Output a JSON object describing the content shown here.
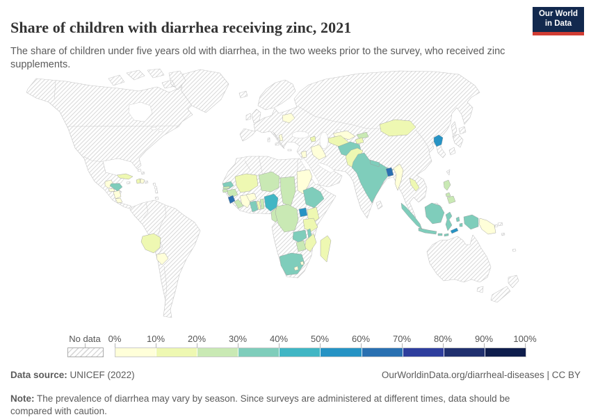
{
  "header": {
    "title": "Share of children with diarrhea receiving zinc, 2021",
    "subtitle": "The share of children under five years old with diarrhea, in the two weeks prior to the survey, who received zinc supplements.",
    "logo": {
      "line1": "Our World",
      "line2": "in Data",
      "bg_color": "#12294e",
      "accent_color": "#d13d33"
    }
  },
  "footer": {
    "source_label": "Data source:",
    "source_value": "UNICEF (2022)",
    "link": "OurWorldinData.org/diarrheal-diseases | CC BY",
    "note_label": "Note:",
    "note_text": "The prevalence of diarrhea may vary by season. Since surveys are administered at different times, data should be compared with caution."
  },
  "chart_data": {
    "type": "heatmap",
    "variant": "choropleth_world_map",
    "title": "Share of children with diarrhea receiving zinc, 2021",
    "year": 2021,
    "unit": "%",
    "legend": {
      "position": "bottom",
      "no_data_label": "No data",
      "no_data_style": "diagonal-hatch",
      "ticks": [
        "0%",
        "10%",
        "20%",
        "30%",
        "40%",
        "50%",
        "60%",
        "70%",
        "80%",
        "90%",
        "100%"
      ],
      "bin_labels": [
        "0-10%",
        "10-20%",
        "20-30%",
        "30-40%",
        "40-50%",
        "50-60%",
        "60-70%",
        "70-80%",
        "80-90%",
        "90-100%"
      ],
      "colors": [
        "#ffffd9",
        "#eef8b2",
        "#c9e9b4",
        "#7fcdbb",
        "#41b6c4",
        "#2693c4",
        "#2a70b1",
        "#2e3e9d",
        "#20306e",
        "#0e1d4c"
      ]
    },
    "countries": [
      {
        "id": "guatemala",
        "name": "Guatemala",
        "range": "0-10%",
        "bin": 0
      },
      {
        "id": "el-salvador",
        "name": "El Salvador",
        "range": "0-10%",
        "bin": 0
      },
      {
        "id": "honduras",
        "name": "Honduras",
        "range": "30-40%",
        "bin": 3
      },
      {
        "id": "nicaragua",
        "name": "Nicaragua",
        "range": "0-10%",
        "bin": 0
      },
      {
        "id": "costa-rica",
        "name": "Costa Rica",
        "range": "0-10%",
        "bin": 0
      },
      {
        "id": "cuba",
        "name": "Cuba",
        "range": "10-20%",
        "bin": 1
      },
      {
        "id": "haiti",
        "name": "Haiti",
        "range": "10-20%",
        "bin": 1
      },
      {
        "id": "dominican-republic",
        "name": "Dominican Republic",
        "range": "0-10%",
        "bin": 0
      },
      {
        "id": "bolivia",
        "name": "Bolivia",
        "range": "10-20%",
        "bin": 1
      },
      {
        "id": "paraguay",
        "name": "Paraguay",
        "range": "0-10%",
        "bin": 0
      },
      {
        "id": "belarus",
        "name": "Belarus",
        "range": "0-10%",
        "bin": 0
      },
      {
        "id": "albania",
        "name": "Albania",
        "range": "0-10%",
        "bin": 0
      },
      {
        "id": "armenia",
        "name": "Armenia",
        "range": "10-20%",
        "bin": 1
      },
      {
        "id": "jordan",
        "name": "Jordan",
        "range": "0-10%",
        "bin": 0
      },
      {
        "id": "iraq",
        "name": "Iraq",
        "range": "0-10%",
        "bin": 0
      },
      {
        "id": "turkmenistan",
        "name": "Turkmenistan",
        "range": "10-20%",
        "bin": 1
      },
      {
        "id": "uzbekistan",
        "name": "Uzbekistan",
        "range": "0-10%",
        "bin": 0
      },
      {
        "id": "kyrgyzstan",
        "name": "Kyrgyzstan",
        "range": "20-30%",
        "bin": 2
      },
      {
        "id": "tajikistan",
        "name": "Tajikistan",
        "range": "10-20%",
        "bin": 1
      },
      {
        "id": "afghanistan",
        "name": "Afghanistan",
        "range": "30-40%",
        "bin": 3
      },
      {
        "id": "pakistan",
        "name": "Pakistan",
        "range": "10-20%",
        "bin": 1
      },
      {
        "id": "india",
        "name": "India",
        "range": "30-40%",
        "bin": 3
      },
      {
        "id": "nepal",
        "name": "Nepal",
        "range": "30-40%",
        "bin": 3
      },
      {
        "id": "bangladesh",
        "name": "Bangladesh",
        "range": "60-70%",
        "bin": 6
      },
      {
        "id": "myanmar",
        "name": "Myanmar",
        "range": "0-10%",
        "bin": 0
      },
      {
        "id": "laos",
        "name": "Laos",
        "range": "10-20%",
        "bin": 1
      },
      {
        "id": "mongolia",
        "name": "Mongolia",
        "range": "10-20%",
        "bin": 1
      },
      {
        "id": "north-korea",
        "name": "North Korea",
        "range": "50-60%",
        "bin": 5
      },
      {
        "id": "philippines",
        "name": "Philippines",
        "range": "20-30%",
        "bin": 2
      },
      {
        "id": "indonesia",
        "name": "Indonesia",
        "range": "30-40%",
        "bin": 3
      },
      {
        "id": "timor-leste",
        "name": "Timor-Leste",
        "range": "50-60%",
        "bin": 5
      },
      {
        "id": "papua-new-guinea",
        "name": "Papua New Guinea",
        "range": "0-10%",
        "bin": 0
      },
      {
        "id": "senegal",
        "name": "Senegal",
        "range": "30-40%",
        "bin": 3
      },
      {
        "id": "gambia",
        "name": "Gambia",
        "range": "20-30%",
        "bin": 2
      },
      {
        "id": "guinea-bissau",
        "name": "Guinea-Bissau",
        "range": "20-30%",
        "bin": 2
      },
      {
        "id": "guinea",
        "name": "Guinea",
        "range": "20-30%",
        "bin": 2
      },
      {
        "id": "sierra-leone",
        "name": "Sierra Leone",
        "range": "60-70%",
        "bin": 6
      },
      {
        "id": "liberia",
        "name": "Liberia",
        "range": "20-30%",
        "bin": 2
      },
      {
        "id": "cote-divoire",
        "name": "Cote d'Ivoire",
        "range": "0-10%",
        "bin": 0
      },
      {
        "id": "mali",
        "name": "Mali",
        "range": "10-20%",
        "bin": 1
      },
      {
        "id": "burkina-faso",
        "name": "Burkina Faso",
        "range": "0-10%",
        "bin": 0
      },
      {
        "id": "ghana",
        "name": "Ghana",
        "range": "30-40%",
        "bin": 3
      },
      {
        "id": "togo",
        "name": "Togo",
        "range": "10-20%",
        "bin": 1
      },
      {
        "id": "benin",
        "name": "Benin",
        "range": "20-30%",
        "bin": 2
      },
      {
        "id": "nigeria",
        "name": "Nigeria",
        "range": "40-50%",
        "bin": 4
      },
      {
        "id": "niger",
        "name": "Niger",
        "range": "20-30%",
        "bin": 2
      },
      {
        "id": "chad",
        "name": "Chad",
        "range": "20-30%",
        "bin": 2
      },
      {
        "id": "cameroon",
        "name": "Cameroon",
        "range": "20-30%",
        "bin": 2
      },
      {
        "id": "sudan",
        "name": "Sudan",
        "range": "0-10%",
        "bin": 0
      },
      {
        "id": "ethiopia",
        "name": "Ethiopia",
        "range": "30-40%",
        "bin": 3
      },
      {
        "id": "uganda",
        "name": "Uganda",
        "range": "50-60%",
        "bin": 5
      },
      {
        "id": "kenya",
        "name": "Kenya",
        "range": "10-20%",
        "bin": 1
      },
      {
        "id": "tanzania",
        "name": "Tanzania",
        "range": "10-20%",
        "bin": 1
      },
      {
        "id": "dr-congo",
        "name": "Democratic Republic of Congo",
        "range": "20-30%",
        "bin": 2
      },
      {
        "id": "zambia",
        "name": "Zambia",
        "range": "30-40%",
        "bin": 3
      },
      {
        "id": "malawi",
        "name": "Malawi",
        "range": "30-40%",
        "bin": 3
      },
      {
        "id": "mozambique",
        "name": "Mozambique",
        "range": "10-20%",
        "bin": 1
      },
      {
        "id": "zimbabwe",
        "name": "Zimbabwe",
        "range": "20-30%",
        "bin": 2
      },
      {
        "id": "south-africa",
        "name": "South Africa",
        "range": "30-40%",
        "bin": 3
      },
      {
        "id": "lesotho",
        "name": "Lesotho",
        "range": "0-10%",
        "bin": 0
      },
      {
        "id": "eswatini",
        "name": "Eswatini",
        "range": "0-10%",
        "bin": 0
      },
      {
        "id": "madagascar",
        "name": "Madagascar",
        "range": "10-20%",
        "bin": 1
      }
    ]
  }
}
